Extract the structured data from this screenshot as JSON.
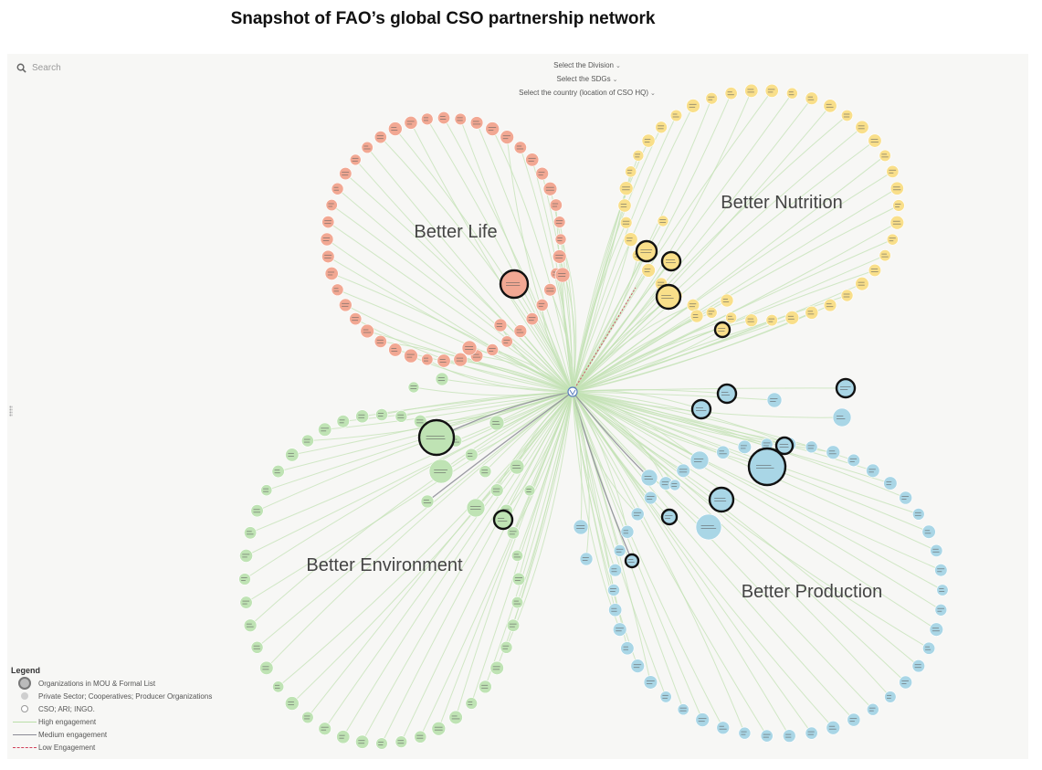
{
  "title": "Snapshot of FAO’s global CSO partnership network",
  "search": {
    "placeholder": "Search"
  },
  "filters": [
    {
      "label": "Select the Division"
    },
    {
      "label": "Select the SDGs"
    },
    {
      "label": "Select the country (location of CSO HQ)"
    }
  ],
  "clusters": [
    {
      "name": "Better Life",
      "color": "#f2a893"
    },
    {
      "name": "Better Nutrition",
      "color": "#f9df8a"
    },
    {
      "name": "Better Environment",
      "color": "#bfe3b4"
    },
    {
      "name": "Better Production",
      "color": "#a9d6e6"
    }
  ],
  "legend": {
    "title": "Legend",
    "items": [
      {
        "label": "Organizations in MOU & Formal List",
        "symbol": "mou"
      },
      {
        "label": "Private Sector; Cooperatives; Producer Organizations",
        "symbol": "private"
      },
      {
        "label": "CSO; ARI; INGO.",
        "symbol": "cso"
      },
      {
        "label": "High engagement",
        "symbol": "line-high",
        "color": "#b9dfa8"
      },
      {
        "label": "Medium engagement",
        "symbol": "line-medium",
        "color": "#8a8a95"
      },
      {
        "label": "Low Engagement",
        "symbol": "line-low",
        "color": "#d0405a"
      }
    ]
  },
  "colors": {
    "high": "#c3e2b4",
    "medium": "#8f8f99",
    "low": "#d0405a",
    "hub": "#ffffff",
    "label": "#444444"
  },
  "icons": {
    "search": "search-icon",
    "dropdown": "chevron-down-icon",
    "hub": "fao-hub-icon",
    "handle": "drag-handle-icon"
  }
}
